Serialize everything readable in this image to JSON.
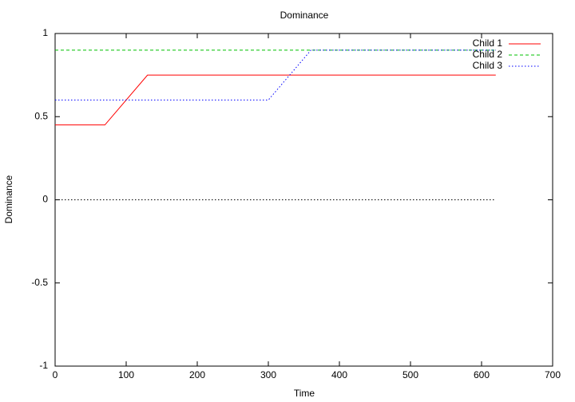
{
  "chart_data": {
    "type": "line",
    "title": "Dominance",
    "xlabel": "Time",
    "ylabel": "Dominance",
    "xlim": [
      0,
      700
    ],
    "xticks": [
      0,
      100,
      200,
      300,
      400,
      500,
      600,
      700
    ],
    "ylim": [
      -1,
      1
    ],
    "yticks": [
      -1,
      -0.5,
      0,
      0.5,
      1
    ],
    "legend": "upper right",
    "series": [
      {
        "name": "Child 1",
        "color": "#ff0000",
        "dash": "solid",
        "x": [
          0,
          70,
          130,
          620
        ],
        "values": [
          0.45,
          0.45,
          0.75,
          0.75
        ]
      },
      {
        "name": "Child 2",
        "color": "#00c000",
        "dash": "dashed",
        "x": [
          0,
          620
        ],
        "values": [
          0.9,
          0.9
        ]
      },
      {
        "name": "Child 3",
        "color": "#0000ff",
        "dash": "dotted",
        "x": [
          0,
          300,
          360,
          620
        ],
        "values": [
          0.6,
          0.6,
          0.9,
          0.9
        ]
      },
      {
        "color": "#000000",
        "dash": "dotted",
        "x": [
          0,
          620
        ],
        "values": [
          0,
          0
        ]
      }
    ]
  }
}
